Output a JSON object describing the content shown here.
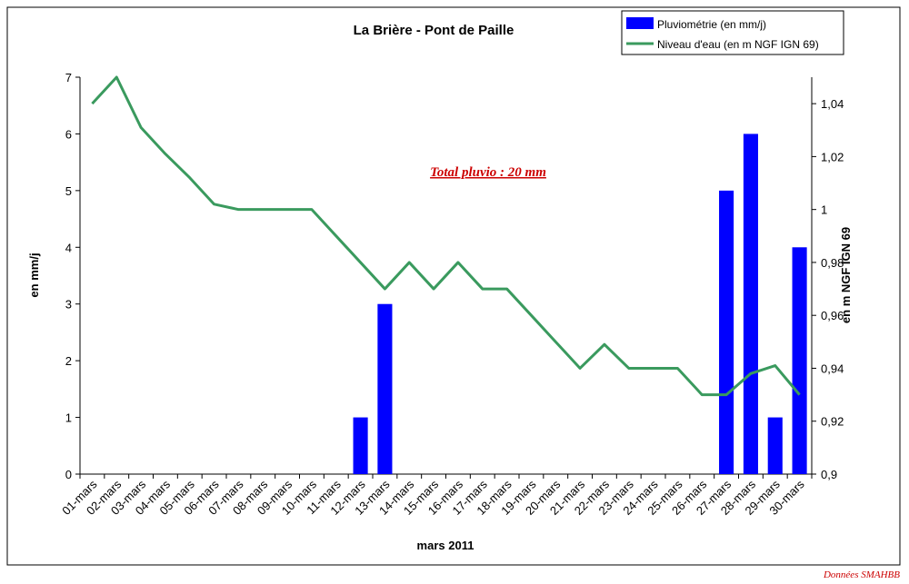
{
  "chart_data": {
    "type": "bar_line",
    "title": "La Brière - Pont de Paille",
    "x_label": "mars 2011",
    "y_label": "en mm/j",
    "y2_label": "en m NGF IGN 69",
    "annotation": "Total pluvio : 20 mm",
    "source": "Données SMAHBB",
    "legend": "top-right",
    "categories": [
      "01-mars",
      "02-mars",
      "03-mars",
      "04-mars",
      "05-mars",
      "06-mars",
      "07-mars",
      "08-mars",
      "09-mars",
      "10-mars",
      "11-mars",
      "12-mars",
      "13-mars",
      "14-mars",
      "15-mars",
      "16-mars",
      "17-mars",
      "18-mars",
      "19-mars",
      "20-mars",
      "21-mars",
      "22-mars",
      "23-mars",
      "24-mars",
      "25-mars",
      "26-mars",
      "27-mars",
      "28-mars",
      "29-mars",
      "30-mars"
    ],
    "series": [
      {
        "name": "Pluviométrie (en mm/j)",
        "color": "#0000ff",
        "kind": "bar",
        "values": [
          0,
          0,
          0,
          0,
          0,
          0,
          0,
          0,
          0,
          0,
          0,
          1,
          3,
          0,
          0,
          0,
          0,
          0,
          0,
          0,
          0,
          0,
          0,
          0,
          0,
          0,
          5,
          6,
          1,
          4
        ]
      },
      {
        "name": "Niveau d'eau (en m NGF IGN 69)",
        "color": "#3a9a5e",
        "kind": "line",
        "axis": "y2",
        "values": [
          1.04,
          1.05,
          1.031,
          1.021,
          1.012,
          1.002,
          1.0,
          1.0,
          1.0,
          1.0,
          0.99,
          0.98,
          0.97,
          0.98,
          0.97,
          0.98,
          0.97,
          0.97,
          0.96,
          0.95,
          0.94,
          0.949,
          0.94,
          0.94,
          0.94,
          0.93,
          0.93,
          0.938,
          0.941,
          0.93
        ]
      }
    ],
    "ylim": [
      0,
      7
    ],
    "yticks": [
      0,
      1,
      2,
      3,
      4,
      5,
      6,
      7
    ],
    "y2lim": [
      0.9,
      1.05
    ],
    "y2ticks": [
      {
        "value": 0.9,
        "label": "0,9"
      },
      {
        "value": 0.92,
        "label": "0,92"
      },
      {
        "value": 0.94,
        "label": "0,94"
      },
      {
        "value": 0.96,
        "label": "0,96"
      },
      {
        "value": 0.98,
        "label": "0,98"
      },
      {
        "value": 1,
        "label": "1"
      },
      {
        "value": 1.02,
        "label": "1,02"
      },
      {
        "value": 1.04,
        "label": "1,04"
      }
    ]
  }
}
